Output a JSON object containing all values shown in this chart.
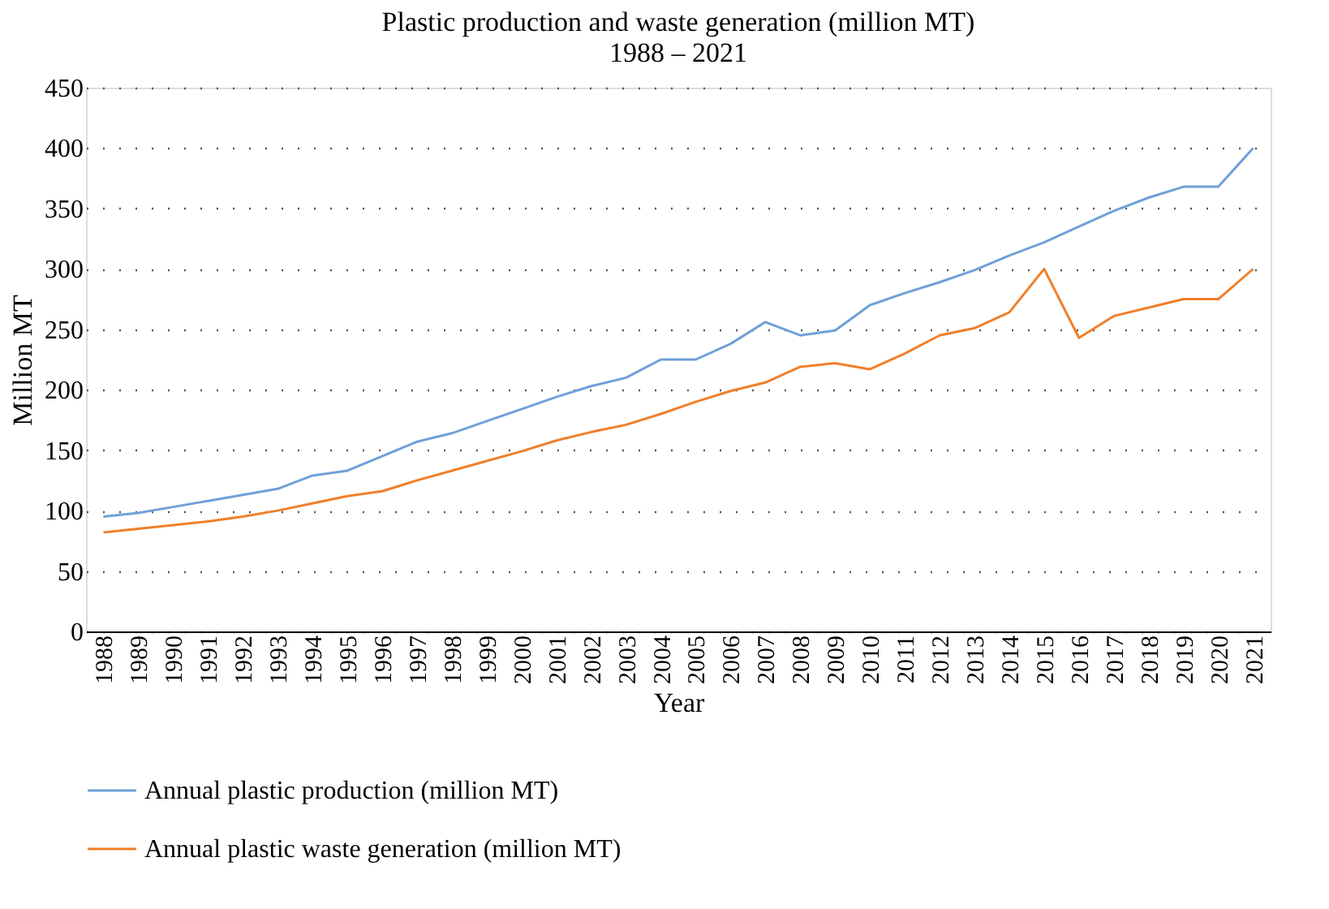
{
  "chart_data": {
    "type": "line",
    "title": "Plastic production and waste generation (million MT)",
    "subtitle": "1988 – 2021",
    "xlabel": "Year",
    "ylabel": "Million MT",
    "categories": [
      "1988",
      "1989",
      "1990",
      "1991",
      "1992",
      "1993",
      "1994",
      "1995",
      "1996",
      "1997",
      "1998",
      "1999",
      "2000",
      "2001",
      "2002",
      "2003",
      "2004",
      "2005",
      "2006",
      "2007",
      "2008",
      "2009",
      "2010",
      "2011",
      "2012",
      "2013",
      "2014",
      "2015",
      "2016",
      "2017",
      "2018",
      "2019",
      "2020",
      "2021"
    ],
    "series": [
      {
        "name": "Annual plastic production (million MT)",
        "color": "#6fa0d8",
        "values": [
          95,
          98,
          103,
          108,
          113,
          118,
          129,
          133,
          145,
          157,
          164,
          174,
          184,
          194,
          203,
          210,
          225,
          225,
          238,
          256,
          245,
          249,
          270,
          280,
          289,
          299,
          311,
          322,
          335,
          348,
          359,
          368,
          368,
          400
        ]
      },
      {
        "name": "Annual plastic waste generation (million MT)",
        "color": "#f07f2a",
        "values": [
          82,
          85,
          88,
          91,
          95,
          100,
          106,
          112,
          116,
          125,
          133,
          141,
          149,
          158,
          165,
          171,
          180,
          190,
          199,
          206,
          219,
          222,
          217,
          230,
          245,
          251,
          264,
          300,
          243,
          261,
          268,
          275,
          275,
          300
        ]
      }
    ],
    "ylim": [
      0,
      450
    ],
    "yticks": [
      0,
      50,
      100,
      150,
      200,
      250,
      300,
      350,
      400,
      450
    ],
    "grid": "y",
    "legend": "bottom left",
    "marker": "none",
    "line_style": "solid"
  }
}
